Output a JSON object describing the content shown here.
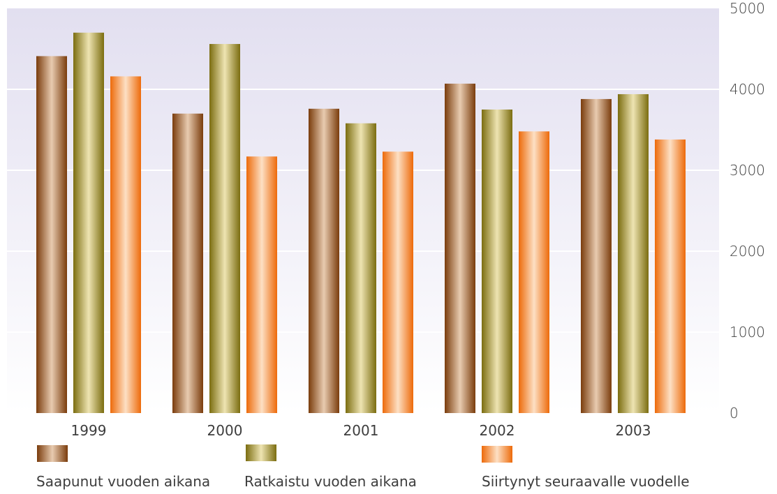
{
  "chart_data": {
    "type": "bar",
    "categories": [
      "1999",
      "2000",
      "2001",
      "2002",
      "2003"
    ],
    "series": [
      {
        "name": "Saapunut vuoden aikana",
        "values": [
          4410,
          3700,
          3760,
          4070,
          3880
        ]
      },
      {
        "name": "Ratkaistu vuoden aikana",
        "values": [
          4700,
          4560,
          3580,
          3750,
          3940
        ]
      },
      {
        "name": "Siirtynyt seuraavalle vuodelle",
        "values": [
          4160,
          3170,
          3230,
          3480,
          3380
        ]
      }
    ],
    "ylim": [
      0,
      5000
    ],
    "yticks": [
      "0",
      "1000",
      "2000",
      "3000",
      "4000",
      "5000"
    ],
    "yaxis_position": "right",
    "grid": true,
    "legend_position": "bottom",
    "title": "",
    "xlabel": "",
    "ylabel": ""
  },
  "colors": {
    "background_top": "#e2dff0",
    "background_bottom": "#ffffff",
    "gridline": "#ffffff",
    "series": [
      "#8b4a14",
      "#8a7a16",
      "#ee6f10"
    ]
  }
}
